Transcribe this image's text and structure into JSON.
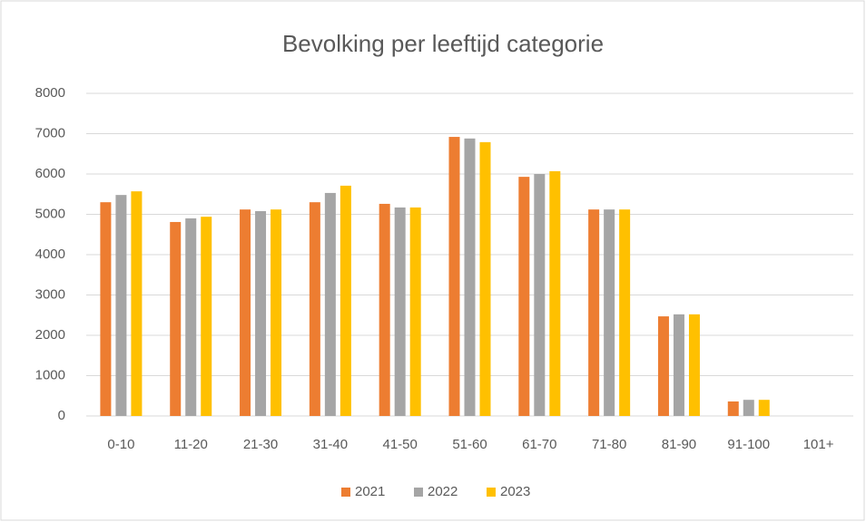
{
  "chart_data": {
    "type": "bar",
    "title": "Bevolking per leeftijd categorie",
    "categories": [
      "0-10",
      "11-20",
      "21-30",
      "31-40",
      "41-50",
      "51-60",
      "61-70",
      "71-80",
      "81-90",
      "91-100",
      "101+"
    ],
    "series": [
      {
        "name": "2021",
        "color": "#ed7d31",
        "values": [
          5300,
          4810,
          5120,
          5300,
          5260,
          6920,
          5930,
          5120,
          2470,
          360,
          0
        ]
      },
      {
        "name": "2022",
        "color": "#a5a5a5",
        "values": [
          5480,
          4900,
          5080,
          5530,
          5170,
          6880,
          6000,
          5120,
          2520,
          400,
          0
        ]
      },
      {
        "name": "2023",
        "color": "#ffc000",
        "values": [
          5570,
          4940,
          5120,
          5710,
          5170,
          6790,
          6070,
          5120,
          2520,
          400,
          0
        ]
      }
    ],
    "ylim": [
      0,
      8000
    ],
    "yticks": [
      0,
      1000,
      2000,
      3000,
      4000,
      5000,
      6000,
      7000,
      8000
    ],
    "grid": true,
    "legend": "bottom"
  }
}
